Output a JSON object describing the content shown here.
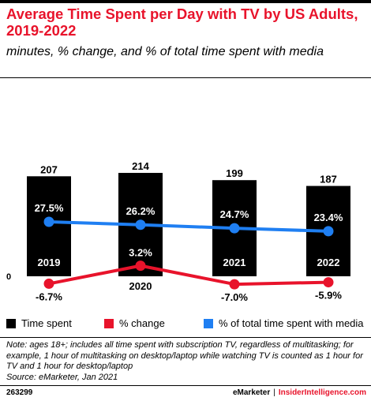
{
  "header": {
    "title": "Average Time Spent per Day with TV by US Adults, 2019-2022",
    "subtitle": "minutes, % change, and % of total time spent with media"
  },
  "colors": {
    "title": "#e8132b",
    "bars": "#000000",
    "change_line": "#e8132b",
    "share_line": "#1f7ff2",
    "bar_label": "#ffffff"
  },
  "legend": {
    "items": [
      {
        "label": "Time spent",
        "color": "#000000"
      },
      {
        "label": "% change",
        "color": "#e8132b"
      },
      {
        "label": "% of total time spent with media",
        "color": "#1f7ff2"
      }
    ]
  },
  "chart_data": {
    "type": "bar",
    "categories": [
      "2019",
      "2020",
      "2021",
      "2022"
    ],
    "series": [
      {
        "name": "Time spent",
        "type": "bar",
        "values": [
          207,
          214,
          199,
          187
        ],
        "labels": [
          "207",
          "214",
          "199",
          "187"
        ]
      },
      {
        "name": "% change",
        "type": "line",
        "values": [
          -6.7,
          3.2,
          -7.0,
          -5.9
        ],
        "labels": [
          "-6.7%",
          "3.2%",
          "-7.0%",
          "-5.9%"
        ]
      },
      {
        "name": "% of total time spent with media",
        "type": "line",
        "values": [
          27.5,
          26.2,
          24.7,
          23.4
        ],
        "labels": [
          "27.5%",
          "26.2%",
          "24.7%",
          "23.4%"
        ]
      }
    ],
    "y_tick_label": "0",
    "legend_position": "bottom",
    "grid": false
  },
  "footer": {
    "note": "Note: ages 18+; includes all time spent with subscription TV, regardless of multitasking; for example, 1 hour of multitasking on desktop/laptop while watching TV is counted as 1 hour for TV and 1 hour for desktop/laptop",
    "source": "Source: eMarketer, Jan 2021",
    "chart_id": "263299",
    "brand": "eMarketer",
    "brand_separator": "|",
    "brand_site": "InsiderIntelligence.com"
  }
}
